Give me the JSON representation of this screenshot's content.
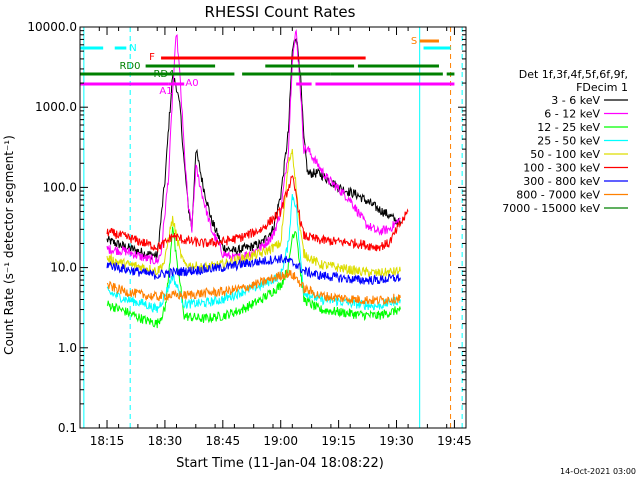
{
  "chart_data": {
    "type": "line",
    "title": "RHESSI Count Rates",
    "xlabel": "Start Time (11-Jan-04 18:08:22)",
    "ylabel": "Count Rate (s⁻¹ detector segment⁻¹)",
    "y_scale": "log",
    "ylim": [
      0.1,
      10000
    ],
    "xlim": [
      "18:08",
      "19:48"
    ],
    "x_tick_labels": [
      "18:15",
      "18:30",
      "18:45",
      "19:00",
      "19:15",
      "19:30",
      "19:45"
    ],
    "y_tick_labels": [
      "0.1",
      "1.0",
      "10.0",
      "100.0",
      "1000.0",
      "10000.0"
    ],
    "legend": {
      "placement": "right",
      "header_1": "Det 1f,3f,4f,5f,6f,9f,",
      "header_2": "FDecim 1"
    },
    "series": [
      {
        "name": "3 - 6 keV",
        "color": "#000000",
        "points": [
          [
            "18:15",
            22
          ],
          [
            "18:20",
            18
          ],
          [
            "18:25",
            15
          ],
          [
            "18:28",
            14
          ],
          [
            "18:30",
            120
          ],
          [
            "18:31",
            600
          ],
          [
            "18:32",
            2500
          ],
          [
            "18:33",
            1800
          ],
          [
            "18:34",
            900
          ],
          [
            "18:35",
            200
          ],
          [
            "18:36",
            60
          ],
          [
            "18:37",
            30
          ],
          [
            "18:38",
            300
          ],
          [
            "18:40",
            100
          ],
          [
            "18:42",
            40
          ],
          [
            "18:45",
            18
          ],
          [
            "18:48",
            16
          ],
          [
            "18:52",
            18
          ],
          [
            "18:55",
            20
          ],
          [
            "18:58",
            30
          ],
          [
            "19:00",
            80
          ],
          [
            "19:02",
            500
          ],
          [
            "19:03",
            5000
          ],
          [
            "19:04",
            8000
          ],
          [
            "19:05",
            3000
          ],
          [
            "19:06",
            400
          ],
          [
            "19:07",
            150
          ],
          [
            "19:10",
            150
          ],
          [
            "19:15",
            100
          ],
          [
            "19:20",
            80
          ],
          [
            "19:25",
            55
          ],
          [
            "19:28",
            45
          ],
          [
            "19:31",
            35
          ]
        ]
      },
      {
        "name": "6 - 12 keV",
        "color": "#ff00ff",
        "points": [
          [
            "18:15",
            17
          ],
          [
            "18:20",
            16
          ],
          [
            "18:25",
            13
          ],
          [
            "18:28",
            12
          ],
          [
            "18:29",
            15
          ],
          [
            "18:31",
            150
          ],
          [
            "18:32",
            1500
          ],
          [
            "18:33",
            9000
          ],
          [
            "18:34",
            2000
          ],
          [
            "18:35",
            300
          ],
          [
            "18:36",
            60
          ],
          [
            "18:37",
            30
          ],
          [
            "18:38",
            180
          ],
          [
            "18:40",
            70
          ],
          [
            "18:42",
            30
          ],
          [
            "18:45",
            15
          ],
          [
            "18:48",
            13
          ],
          [
            "18:52",
            15
          ],
          [
            "18:55",
            18
          ],
          [
            "18:58",
            25
          ],
          [
            "19:00",
            50
          ],
          [
            "19:02",
            300
          ],
          [
            "19:03",
            4000
          ],
          [
            "19:04",
            9000
          ],
          [
            "19:05",
            2000
          ],
          [
            "19:06",
            300
          ],
          [
            "19:07",
            300
          ],
          [
            "19:08",
            250
          ],
          [
            "19:12",
            130
          ],
          [
            "19:18",
            70
          ],
          [
            "19:22",
            35
          ],
          [
            "19:25",
            28
          ],
          [
            "19:28",
            30
          ],
          [
            "19:31",
            40
          ]
        ]
      },
      {
        "name": "12 - 25 keV",
        "color": "#00ff00",
        "points": [
          [
            "18:15",
            3.5
          ],
          [
            "18:20",
            2.8
          ],
          [
            "18:25",
            2.2
          ],
          [
            "18:28",
            2.0
          ],
          [
            "18:30",
            3
          ],
          [
            "18:31",
            8
          ],
          [
            "18:32",
            35
          ],
          [
            "18:33",
            12
          ],
          [
            "18:34",
            6
          ],
          [
            "18:35",
            2.5
          ],
          [
            "18:40",
            2.3
          ],
          [
            "18:45",
            2.5
          ],
          [
            "18:50",
            3
          ],
          [
            "18:55",
            4
          ],
          [
            "19:00",
            6
          ],
          [
            "19:02",
            10
          ],
          [
            "19:03",
            25
          ],
          [
            "19:04",
            30
          ],
          [
            "19:05",
            10
          ],
          [
            "19:06",
            4
          ],
          [
            "19:10",
            3
          ],
          [
            "19:15",
            2.8
          ],
          [
            "19:20",
            2.6
          ],
          [
            "19:25",
            2.5
          ],
          [
            "19:31",
            3
          ]
        ]
      },
      {
        "name": "25 - 50 keV",
        "color": "#00ffff",
        "points": [
          [
            "18:15",
            5
          ],
          [
            "18:20",
            4
          ],
          [
            "18:25",
            3.5
          ],
          [
            "18:28",
            3
          ],
          [
            "18:30",
            4.5
          ],
          [
            "18:32",
            8
          ],
          [
            "18:33",
            6
          ],
          [
            "18:35",
            3.5
          ],
          [
            "18:40",
            3.6
          ],
          [
            "18:45",
            4
          ],
          [
            "18:50",
            5
          ],
          [
            "18:55",
            6
          ],
          [
            "19:00",
            8
          ],
          [
            "19:02",
            20
          ],
          [
            "19:03",
            80
          ],
          [
            "19:04",
            60
          ],
          [
            "19:05",
            15
          ],
          [
            "19:06",
            5
          ],
          [
            "19:10",
            4
          ],
          [
            "19:15",
            3.8
          ],
          [
            "19:20",
            3.5
          ],
          [
            "19:25",
            3.3
          ],
          [
            "19:31",
            4
          ]
        ]
      },
      {
        "name": "50 - 100 keV",
        "color": "#dddd00",
        "points": [
          [
            "18:15",
            13
          ],
          [
            "18:20",
            11
          ],
          [
            "18:25",
            10
          ],
          [
            "18:28",
            9
          ],
          [
            "18:30",
            12
          ],
          [
            "18:31",
            25
          ],
          [
            "18:32",
            40
          ],
          [
            "18:33",
            25
          ],
          [
            "18:34",
            15
          ],
          [
            "18:35",
            11
          ],
          [
            "18:40",
            10
          ],
          [
            "18:45",
            11
          ],
          [
            "18:50",
            13
          ],
          [
            "18:55",
            15
          ],
          [
            "19:00",
            20
          ],
          [
            "19:01",
            60
          ],
          [
            "19:02",
            200
          ],
          [
            "19:03",
            300
          ],
          [
            "19:04",
            100
          ],
          [
            "19:05",
            30
          ],
          [
            "19:06",
            15
          ],
          [
            "19:10",
            11
          ],
          [
            "19:15",
            10
          ],
          [
            "19:20",
            9
          ],
          [
            "19:25",
            8.5
          ],
          [
            "19:31",
            9
          ]
        ]
      },
      {
        "name": "100 - 300 keV",
        "color": "#ff0000",
        "points": [
          [
            "18:15",
            28
          ],
          [
            "18:20",
            24
          ],
          [
            "18:25",
            20
          ],
          [
            "18:28",
            18
          ],
          [
            "18:30",
            20
          ],
          [
            "18:32",
            25
          ],
          [
            "18:35",
            22
          ],
          [
            "18:40",
            20
          ],
          [
            "18:45",
            21
          ],
          [
            "18:50",
            24
          ],
          [
            "18:55",
            30
          ],
          [
            "19:00",
            50
          ],
          [
            "19:02",
            100
          ],
          [
            "19:03",
            130
          ],
          [
            "19:04",
            80
          ],
          [
            "19:05",
            40
          ],
          [
            "19:06",
            25
          ],
          [
            "19:10",
            22
          ],
          [
            "19:15",
            21
          ],
          [
            "19:20",
            20
          ],
          [
            "19:25",
            18
          ],
          [
            "19:28",
            20
          ],
          [
            "19:31",
            35
          ],
          [
            "19:33",
            50
          ]
        ]
      },
      {
        "name": "300 - 800 keV",
        "color": "#0000ff",
        "points": [
          [
            "18:15",
            11
          ],
          [
            "18:20",
            9.5
          ],
          [
            "18:25",
            8.5
          ],
          [
            "18:28",
            8
          ],
          [
            "18:30",
            8.5
          ],
          [
            "18:35",
            9
          ],
          [
            "18:40",
            9.5
          ],
          [
            "18:45",
            10
          ],
          [
            "18:50",
            11
          ],
          [
            "18:55",
            12
          ],
          [
            "19:00",
            13
          ],
          [
            "19:02",
            12
          ],
          [
            "19:04",
            11
          ],
          [
            "19:06",
            9
          ],
          [
            "19:10",
            8
          ],
          [
            "19:15",
            7.5
          ],
          [
            "19:20",
            7
          ],
          [
            "19:25",
            7
          ],
          [
            "19:31",
            7.5
          ]
        ]
      },
      {
        "name": "800 - 7000 keV",
        "color": "#ff8000",
        "points": [
          [
            "18:15",
            6
          ],
          [
            "18:20",
            5
          ],
          [
            "18:25",
            4.5
          ],
          [
            "18:28",
            4.3
          ],
          [
            "18:30",
            4.5
          ],
          [
            "18:35",
            4.5
          ],
          [
            "18:40",
            4.8
          ],
          [
            "18:45",
            5
          ],
          [
            "18:50",
            5.5
          ],
          [
            "18:55",
            6.5
          ],
          [
            "19:00",
            8
          ],
          [
            "19:02",
            8.5
          ],
          [
            "19:04",
            7.5
          ],
          [
            "19:06",
            5.5
          ],
          [
            "19:10",
            4.5
          ],
          [
            "19:15",
            4.2
          ],
          [
            "19:20",
            4
          ],
          [
            "19:25",
            3.9
          ],
          [
            "19:31",
            4.2
          ]
        ]
      },
      {
        "name": "7000 - 15000 keV",
        "color": "#008000",
        "points": []
      }
    ],
    "flag_bars": [
      {
        "label": "N",
        "color": "#00ffff",
        "segments": [
          [
            "18:08",
            "18:14"
          ],
          [
            "18:17",
            "18:20"
          ],
          [
            "19:37",
            "19:44"
          ]
        ]
      },
      {
        "label": "F",
        "color": "#ff0000",
        "segments": [
          [
            "18:29",
            "19:22"
          ]
        ]
      },
      {
        "label": "RD0",
        "color": "#008000",
        "segments": [
          [
            "18:25",
            "18:43"
          ],
          [
            "18:56",
            "19:19"
          ],
          [
            "19:20",
            "19:41"
          ]
        ]
      },
      {
        "label": "RD4",
        "color": "#008000",
        "segments": [
          [
            "18:08",
            "18:48"
          ],
          [
            "18:50",
            "19:13"
          ],
          [
            "19:13",
            "19:42"
          ],
          [
            "19:43",
            "19:45"
          ]
        ]
      },
      {
        "label": "A1",
        "color": "#ff00ff",
        "segments": [
          [
            "18:08",
            "18:31"
          ],
          [
            "18:31",
            "18:35"
          ],
          [
            "19:04",
            "19:08"
          ],
          [
            "19:09",
            "19:45"
          ]
        ]
      },
      {
        "label": "A0",
        "color": "#ff00ff",
        "segments": []
      },
      {
        "label": "S",
        "color": "#ff8000",
        "segments": [
          [
            "19:36",
            "19:41"
          ]
        ]
      }
    ],
    "vertical_markers": [
      {
        "time": "18:09",
        "color": "#00ffff",
        "style": "solid"
      },
      {
        "time": "18:21",
        "color": "#00ffff",
        "style": "dashed"
      },
      {
        "time": "19:36",
        "color": "#00ffff",
        "style": "solid"
      },
      {
        "time": "19:44",
        "color": "#ff8000",
        "style": "dashed"
      },
      {
        "time": "19:47",
        "color": "#00ffff",
        "style": "dashed"
      }
    ],
    "footer_timestamp": "14-Oct-2021 03:00"
  }
}
